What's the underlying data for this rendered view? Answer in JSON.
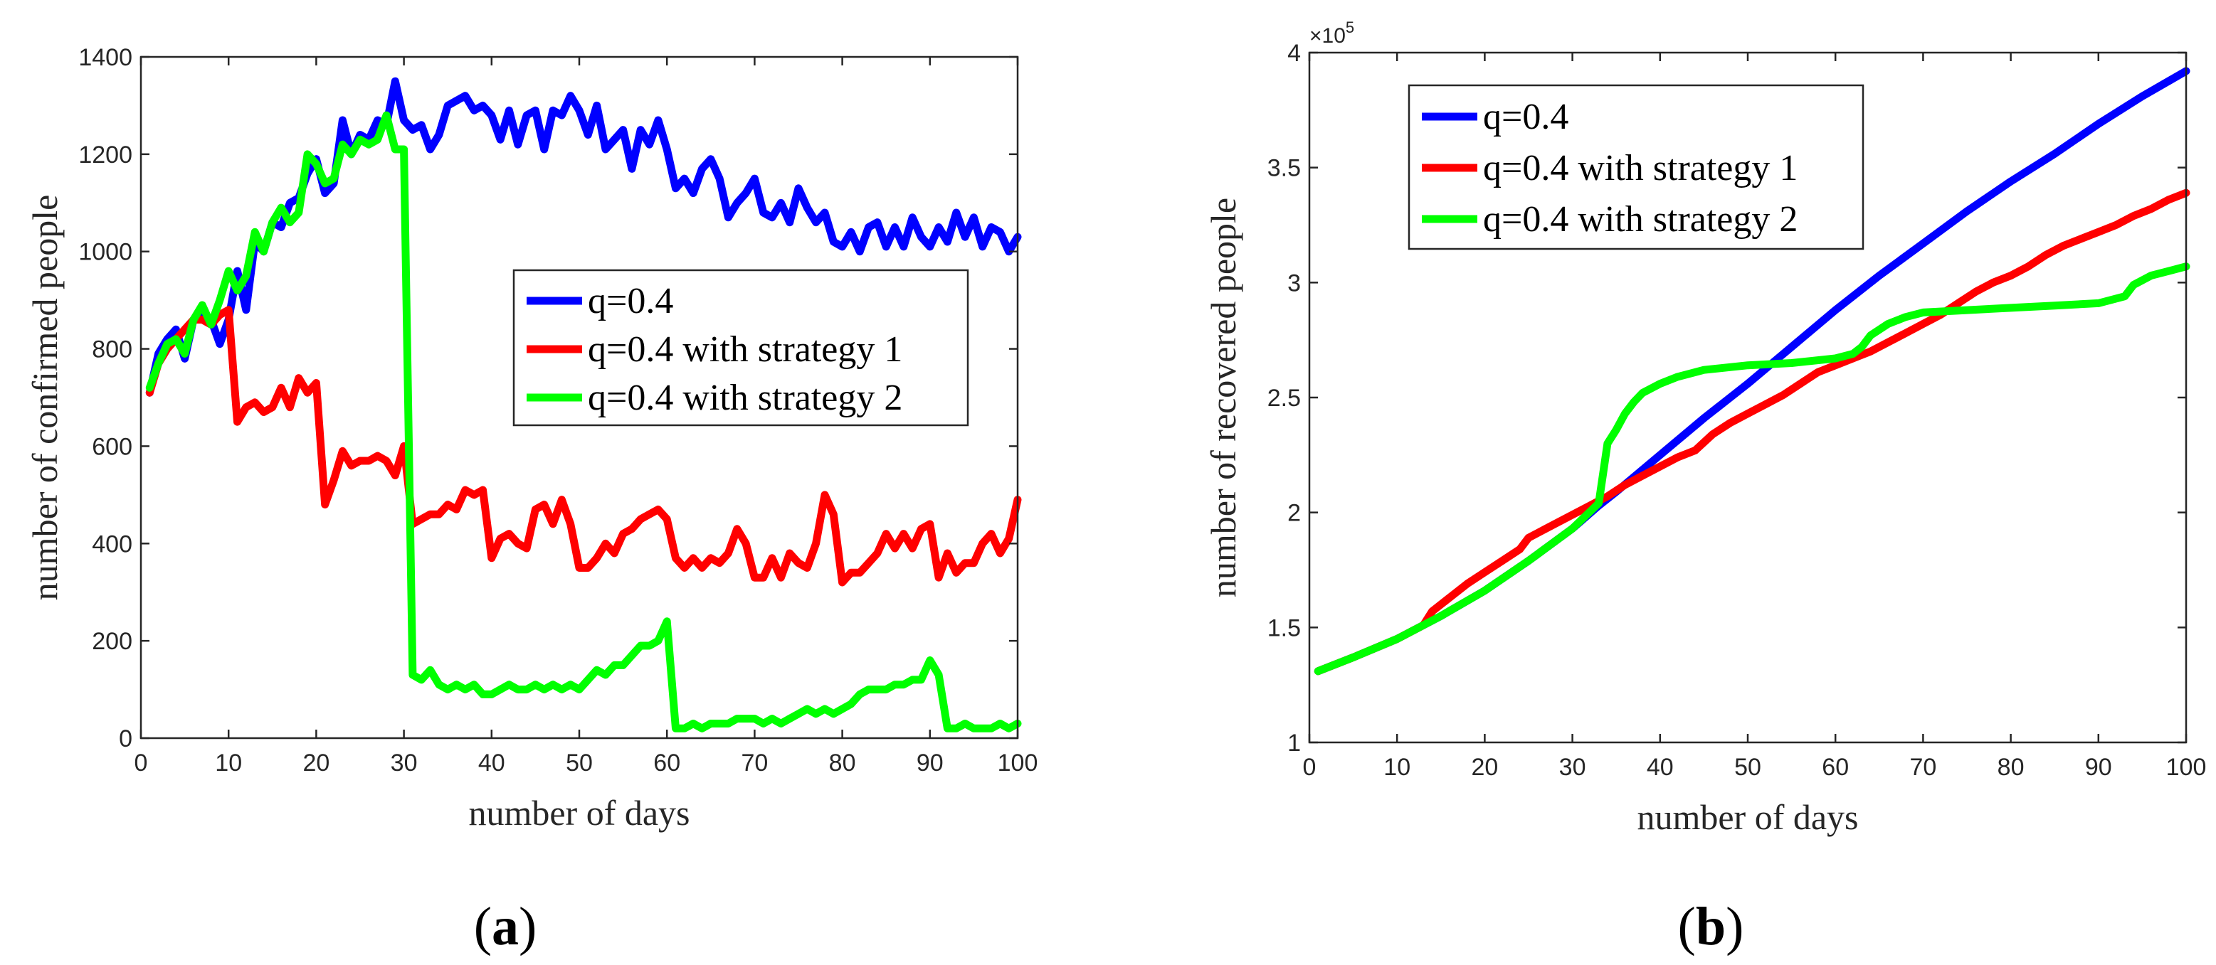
{
  "chart_data": [
    {
      "type": "line",
      "panel": "(a)",
      "xlabel": "number of days",
      "ylabel": "number of confirmed people",
      "xlim": [
        0,
        100
      ],
      "ylim": [
        0,
        1400
      ],
      "xticks": [
        0,
        10,
        20,
        30,
        40,
        50,
        60,
        70,
        80,
        90,
        100
      ],
      "yticks": [
        0,
        200,
        400,
        600,
        800,
        1000,
        1200,
        1400
      ],
      "legend_position": "center-right",
      "x": [
        1,
        2,
        3,
        4,
        5,
        6,
        7,
        8,
        9,
        10,
        11,
        12,
        13,
        14,
        15,
        16,
        17,
        18,
        19,
        20,
        21,
        22,
        23,
        24,
        25,
        26,
        27,
        28,
        29,
        30,
        31,
        32,
        33,
        34,
        35,
        36,
        37,
        38,
        39,
        40,
        41,
        42,
        43,
        44,
        45,
        46,
        47,
        48,
        49,
        50,
        51,
        52,
        53,
        54,
        55,
        56,
        57,
        58,
        59,
        60,
        61,
        62,
        63,
        64,
        65,
        66,
        67,
        68,
        69,
        70,
        71,
        72,
        73,
        74,
        75,
        76,
        77,
        78,
        79,
        80,
        81,
        82,
        83,
        84,
        85,
        86,
        87,
        88,
        89,
        90,
        91,
        92,
        93,
        94,
        95,
        96,
        97,
        98,
        99,
        100
      ],
      "series": [
        {
          "name": "q=0.4",
          "color": "#0000ff",
          "values": [
            710,
            790,
            820,
            840,
            780,
            860,
            870,
            860,
            810,
            860,
            960,
            880,
            1020,
            1000,
            1060,
            1050,
            1100,
            1110,
            1160,
            1190,
            1120,
            1140,
            1270,
            1200,
            1240,
            1230,
            1270,
            1260,
            1350,
            1270,
            1250,
            1260,
            1210,
            1240,
            1300,
            1310,
            1320,
            1290,
            1300,
            1280,
            1230,
            1290,
            1220,
            1280,
            1290,
            1210,
            1290,
            1280,
            1320,
            1290,
            1240,
            1300,
            1210,
            1230,
            1250,
            1170,
            1250,
            1220,
            1270,
            1210,
            1130,
            1150,
            1120,
            1170,
            1190,
            1150,
            1070,
            1100,
            1120,
            1150,
            1080,
            1070,
            1100,
            1060,
            1130,
            1090,
            1060,
            1080,
            1020,
            1010,
            1040,
            1000,
            1050,
            1060,
            1010,
            1050,
            1010,
            1070,
            1030,
            1010,
            1050,
            1020,
            1080,
            1030,
            1070,
            1010,
            1050,
            1040,
            1000,
            1030
          ]
        },
        {
          "name": "q=0.4 with strategy 1",
          "color": "#ff0000",
          "values": [
            710,
            770,
            800,
            820,
            840,
            860,
            860,
            850,
            870,
            880,
            650,
            680,
            690,
            670,
            680,
            720,
            680,
            740,
            710,
            730,
            480,
            530,
            590,
            560,
            570,
            570,
            580,
            570,
            540,
            600,
            440,
            450,
            460,
            460,
            480,
            470,
            510,
            500,
            510,
            370,
            410,
            420,
            400,
            390,
            470,
            480,
            440,
            490,
            440,
            350,
            350,
            370,
            400,
            380,
            420,
            430,
            450,
            460,
            470,
            450,
            370,
            350,
            370,
            350,
            370,
            360,
            380,
            430,
            400,
            330,
            330,
            370,
            330,
            380,
            360,
            350,
            400,
            500,
            460,
            320,
            340,
            340,
            360,
            380,
            420,
            390,
            420,
            390,
            430,
            440,
            330,
            380,
            340,
            360,
            360,
            400,
            420,
            380,
            410,
            490
          ]
        },
        {
          "name": "q=0.4 with strategy 2",
          "color": "#00ff00",
          "values": [
            720,
            770,
            810,
            820,
            790,
            860,
            890,
            850,
            900,
            960,
            920,
            950,
            1040,
            1000,
            1060,
            1090,
            1060,
            1080,
            1200,
            1180,
            1140,
            1150,
            1220,
            1200,
            1230,
            1220,
            1230,
            1280,
            1210,
            1210,
            130,
            120,
            140,
            110,
            100,
            110,
            100,
            110,
            90,
            90,
            100,
            110,
            100,
            100,
            110,
            100,
            110,
            100,
            110,
            100,
            120,
            140,
            130,
            150,
            150,
            170,
            190,
            190,
            200,
            240,
            20,
            20,
            30,
            20,
            30,
            30,
            30,
            40,
            40,
            40,
            30,
            40,
            30,
            40,
            50,
            60,
            50,
            60,
            50,
            60,
            70,
            90,
            100,
            100,
            100,
            110,
            110,
            120,
            120,
            160,
            130,
            20,
            20,
            30,
            20,
            20,
            20,
            30,
            20,
            30
          ]
        }
      ]
    },
    {
      "type": "line",
      "panel": "(b)",
      "xlabel": "number of days",
      "ylabel": "number of recovered people",
      "xlim": [
        0,
        100
      ],
      "ylim": [
        1,
        4
      ],
      "y_multiplier": "×10",
      "y_exponent": "5",
      "xticks": [
        0,
        10,
        20,
        30,
        40,
        50,
        60,
        70,
        80,
        90,
        100
      ],
      "yticks": [
        1,
        1.5,
        2,
        2.5,
        3,
        3.5,
        4
      ],
      "legend_position": "top-left",
      "series": [
        {
          "name": "q=0.4",
          "color": "#0000ff",
          "x": [
            1,
            5,
            10,
            15,
            20,
            25,
            30,
            33,
            35,
            40,
            45,
            50,
            55,
            60,
            65,
            70,
            75,
            80,
            85,
            90,
            95,
            100
          ],
          "values": [
            1.31,
            1.37,
            1.45,
            1.55,
            1.66,
            1.79,
            1.93,
            2.03,
            2.09,
            2.25,
            2.41,
            2.56,
            2.72,
            2.88,
            3.03,
            3.17,
            3.31,
            3.44,
            3.56,
            3.69,
            3.81,
            3.92
          ]
        },
        {
          "name": "q=0.4 with strategy 1",
          "color": "#ff0000",
          "x": [
            1,
            5,
            10,
            13,
            14,
            16,
            18,
            20,
            22,
            24,
            25,
            27,
            30,
            32,
            34,
            36,
            38,
            40,
            42,
            44,
            46,
            48,
            50,
            52,
            54,
            56,
            58,
            60,
            62,
            64,
            66,
            68,
            70,
            72,
            74,
            76,
            78,
            80,
            82,
            84,
            86,
            88,
            90,
            92,
            94,
            96,
            98,
            100
          ],
          "values": [
            1.31,
            1.37,
            1.45,
            1.51,
            1.57,
            1.63,
            1.69,
            1.74,
            1.79,
            1.84,
            1.89,
            1.93,
            1.99,
            2.03,
            2.07,
            2.12,
            2.16,
            2.2,
            2.24,
            2.27,
            2.34,
            2.39,
            2.43,
            2.47,
            2.51,
            2.56,
            2.61,
            2.64,
            2.67,
            2.7,
            2.74,
            2.78,
            2.82,
            2.86,
            2.91,
            2.96,
            3.0,
            3.03,
            3.07,
            3.12,
            3.16,
            3.19,
            3.22,
            3.25,
            3.29,
            3.32,
            3.36,
            3.39
          ]
        },
        {
          "name": "q=0.4 with strategy 2",
          "color": "#00ff00",
          "x": [
            1,
            5,
            10,
            15,
            20,
            25,
            30,
            33,
            34,
            35,
            36,
            37,
            38,
            40,
            42,
            45,
            50,
            55,
            60,
            62,
            63,
            64,
            66,
            68,
            70,
            75,
            80,
            85,
            90,
            93,
            94,
            96,
            98,
            100
          ],
          "values": [
            1.31,
            1.37,
            1.45,
            1.55,
            1.66,
            1.79,
            1.93,
            2.04,
            2.3,
            2.36,
            2.43,
            2.48,
            2.52,
            2.56,
            2.59,
            2.62,
            2.64,
            2.65,
            2.67,
            2.69,
            2.72,
            2.77,
            2.82,
            2.85,
            2.87,
            2.88,
            2.89,
            2.9,
            2.91,
            2.94,
            2.99,
            3.03,
            3.05,
            3.07
          ]
        }
      ]
    }
  ]
}
